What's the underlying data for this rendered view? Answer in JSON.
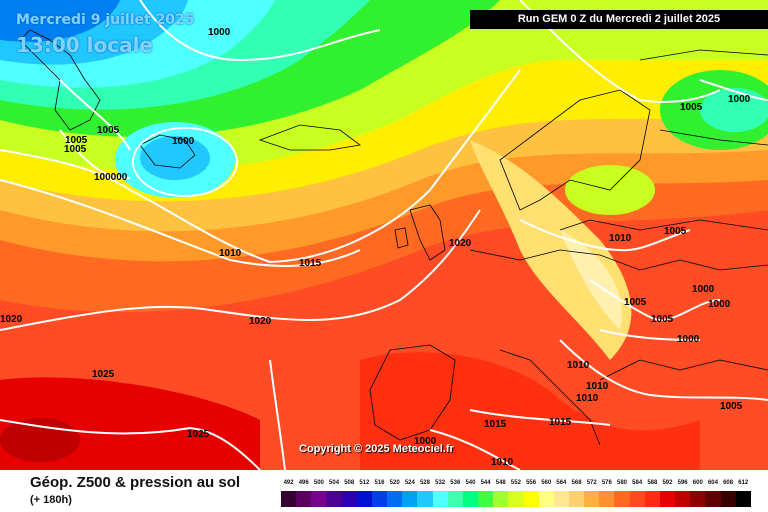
{
  "header": {
    "date": "Mercredi 9 juillet 2025",
    "time": "13:00 locale",
    "run": "Run GEM 0 Z du Mercredi 2 juillet 2025"
  },
  "map": {
    "copyright": "Copyright © 2025 Meteociel.fr",
    "isobar_labels": [
      "1000",
      "1005",
      "1005",
      "1005",
      "1000",
      "100000",
      "1010",
      "1015",
      "1020",
      "1020",
      "1025",
      "1025",
      "1020",
      "1010",
      "1005",
      "1000",
      "1005",
      "1000",
      "1000",
      "1005",
      "1005",
      "1000",
      "1010",
      "1010",
      "1010",
      "1015",
      "1015",
      "1010",
      "1005",
      "1000",
      "1020"
    ]
  },
  "footer": {
    "title": "Géop. Z500 & pression au sol",
    "subtitle": "(+ 180h)"
  },
  "legend": {
    "labels": [
      "492",
      "496",
      "500",
      "504",
      "508",
      "512",
      "516",
      "520",
      "524",
      "528",
      "532",
      "536",
      "540",
      "544",
      "548",
      "552",
      "556",
      "560",
      "564",
      "568",
      "572",
      "576",
      "580",
      "584",
      "588",
      "592",
      "596",
      "600",
      "604",
      "608",
      "612"
    ],
    "colors": [
      "#350030",
      "#5a0060",
      "#7a0090",
      "#4d0094",
      "#2a00b0",
      "#0010d0",
      "#0040e6",
      "#006ef0",
      "#00a0f5",
      "#20c8ff",
      "#50ffff",
      "#40ffb0",
      "#00ff80",
      "#40ff40",
      "#a0ff30",
      "#d8ff20",
      "#ffff00",
      "#ffff80",
      "#ffe890",
      "#ffd070",
      "#ffb040",
      "#ff9030",
      "#ff6a20",
      "#ff4a20",
      "#ff2a10",
      "#e60000",
      "#c00000",
      "#8f0000",
      "#600000",
      "#380000",
      "#000000"
    ]
  }
}
